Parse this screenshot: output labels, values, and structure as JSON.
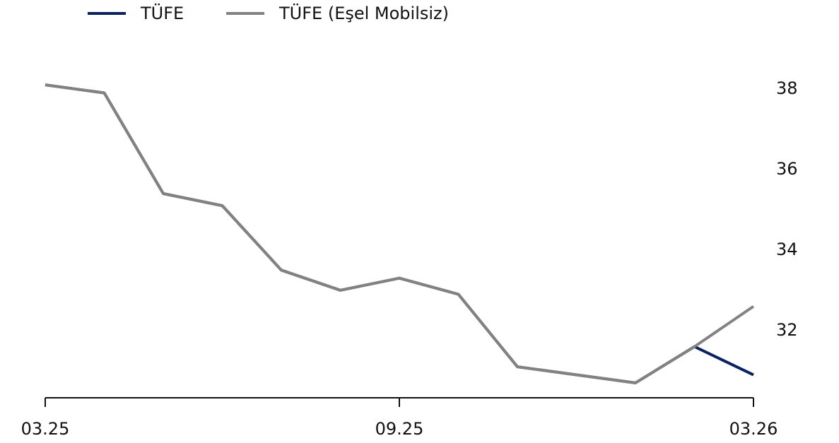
{
  "chart_data": {
    "type": "line",
    "categories": [
      "03.25",
      null,
      null,
      null,
      null,
      null,
      "09.25",
      null,
      null,
      null,
      null,
      null,
      "03.26"
    ],
    "series": [
      {
        "name": "TÜFE",
        "color": "#0b2260",
        "values": [
          38.1,
          37.9,
          35.4,
          35.1,
          33.5,
          33.0,
          33.3,
          32.9,
          31.1,
          30.9,
          30.7,
          31.6,
          30.9
        ]
      },
      {
        "name": "TÜFE (Eşel Mobilsiz)",
        "color": "#828282",
        "values": [
          38.1,
          37.9,
          35.4,
          35.1,
          33.5,
          33.0,
          33.3,
          32.9,
          31.1,
          30.9,
          30.7,
          31.6,
          32.6
        ]
      }
    ],
    "ylim": [
      30.33,
      38.4
    ],
    "yticks": [
      32,
      34,
      36,
      38
    ],
    "grid": false,
    "legend": "top-left"
  }
}
